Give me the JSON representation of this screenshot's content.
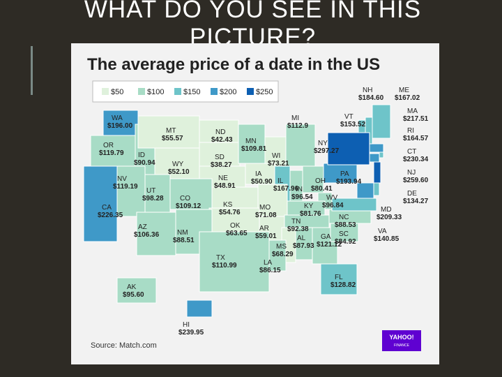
{
  "slide_title": "WHAT DO YOU SEE IN THIS PICTURE?",
  "map": {
    "title": "The average price of a date in the US",
    "legend": [
      {
        "label": "$50",
        "color": "#dff1dc"
      },
      {
        "label": "$100",
        "color": "#a8dcc6"
      },
      {
        "label": "$150",
        "color": "#6ec4c9"
      },
      {
        "label": "$200",
        "color": "#3f99c8"
      },
      {
        "label": "$250",
        "color": "#0d5fb2"
      }
    ],
    "states": [
      {
        "abbr": "WA",
        "price": "$196.00",
        "color": "#3f99c8"
      },
      {
        "abbr": "OR",
        "price": "$119.79",
        "color": "#a8dcc6"
      },
      {
        "abbr": "ID",
        "price": "$90.94",
        "color": "#a8dcc6"
      },
      {
        "abbr": "MT",
        "price": "$55.57",
        "color": "#dff1dc"
      },
      {
        "abbr": "WY",
        "price": "$52.10",
        "color": "#dff1dc"
      },
      {
        "abbr": "ND",
        "price": "$42.43",
        "color": "#dff1dc"
      },
      {
        "abbr": "SD",
        "price": "$38.27",
        "color": "#dff1dc"
      },
      {
        "abbr": "NE",
        "price": "$48.91",
        "color": "#dff1dc"
      },
      {
        "abbr": "MN",
        "price": "$109.81",
        "color": "#a8dcc6"
      },
      {
        "abbr": "WI",
        "price": "$73.21",
        "color": "#dff1dc"
      },
      {
        "abbr": "MI",
        "price": "$112.9",
        "color": "#a8dcc6"
      },
      {
        "abbr": "IA",
        "price": "$50.90",
        "color": "#dff1dc"
      },
      {
        "abbr": "IL",
        "price": "$167.96",
        "color": "#6ec4c9"
      },
      {
        "abbr": "IN",
        "price": "$96.54",
        "color": "#a8dcc6"
      },
      {
        "abbr": "OH",
        "price": "$80.41",
        "color": "#a8dcc6"
      },
      {
        "abbr": "WV",
        "price": "$96.84",
        "color": "#a8dcc6"
      },
      {
        "abbr": "KY",
        "price": "$81.76",
        "color": "#a8dcc6"
      },
      {
        "abbr": "PA",
        "price": "$193.94",
        "color": "#3f99c8"
      },
      {
        "abbr": "NV",
        "price": "$119.19",
        "color": "#a8dcc6"
      },
      {
        "abbr": "UT",
        "price": "$98.28",
        "color": "#a8dcc6"
      },
      {
        "abbr": "CO",
        "price": "$109.12",
        "color": "#a8dcc6"
      },
      {
        "abbr": "CA",
        "price": "$226.35",
        "color": "#3f99c8"
      },
      {
        "abbr": "KS",
        "price": "$54.76",
        "color": "#dff1dc"
      },
      {
        "abbr": "MO",
        "price": "$71.08",
        "color": "#dff1dc"
      },
      {
        "abbr": "OK",
        "price": "$63.65",
        "color": "#dff1dc"
      },
      {
        "abbr": "AR",
        "price": "$59.01",
        "color": "#dff1dc"
      },
      {
        "abbr": "TN",
        "price": "$92.38",
        "color": "#a8dcc6"
      },
      {
        "abbr": "AL",
        "price": "$87.93",
        "color": "#a8dcc6"
      },
      {
        "abbr": "MS",
        "price": "$68.29",
        "color": "#dff1dc"
      },
      {
        "abbr": "LA",
        "price": "$86.15",
        "color": "#a8dcc6"
      },
      {
        "abbr": "GA",
        "price": "$121.12",
        "color": "#a8dcc6"
      },
      {
        "abbr": "FL",
        "price": "$128.82",
        "color": "#6ec4c9"
      },
      {
        "abbr": "NC",
        "price": "$88.53",
        "color": "#a8dcc6"
      },
      {
        "abbr": "SC",
        "price": "$84.92",
        "color": "#a8dcc6"
      },
      {
        "abbr": "VA",
        "price": "$140.85",
        "color": "#6ec4c9"
      },
      {
        "abbr": "MD",
        "price": "$209.33",
        "color": "#3f99c8"
      },
      {
        "abbr": "DE",
        "price": "$134.27",
        "color": "#6ec4c9"
      },
      {
        "abbr": "NJ",
        "price": "$259.60",
        "color": "#0d5fb2"
      },
      {
        "abbr": "CT",
        "price": "$230.34",
        "color": "#3f99c8"
      },
      {
        "abbr": "RI",
        "price": "$164.57",
        "color": "#6ec4c9"
      },
      {
        "abbr": "MA",
        "price": "$217.51",
        "color": "#3f99c8"
      },
      {
        "abbr": "ME",
        "price": "$167.02",
        "color": "#6ec4c9"
      },
      {
        "abbr": "NH",
        "price": "$184.60",
        "color": "#6ec4c9"
      },
      {
        "abbr": "VT",
        "price": "$153.52",
        "color": "#6ec4c9"
      },
      {
        "abbr": "NY",
        "price": "$297.27",
        "color": "#0d5fb2"
      },
      {
        "abbr": "AZ",
        "price": "$106.36",
        "color": "#a8dcc6"
      },
      {
        "abbr": "NM",
        "price": "$88.51",
        "color": "#a8dcc6"
      },
      {
        "abbr": "TX",
        "price": "$110.99",
        "color": "#a8dcc6"
      },
      {
        "abbr": "AK",
        "price": "$95.60",
        "color": "#a8dcc6"
      },
      {
        "abbr": "HI",
        "price": "$239.95",
        "color": "#3f99c8"
      }
    ],
    "source": "Source: Match.com",
    "logo": [
      "YAHOO!",
      "FINANCE"
    ]
  }
}
